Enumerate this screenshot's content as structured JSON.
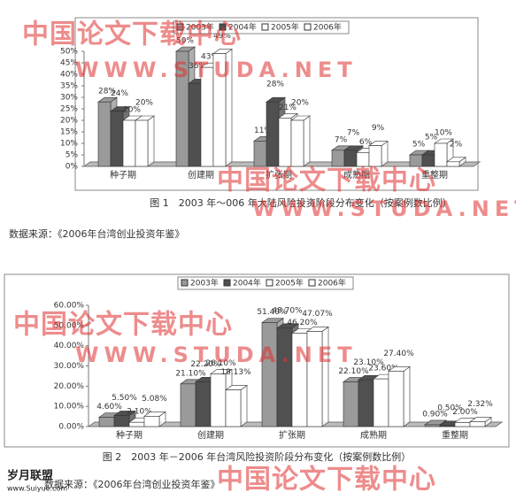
{
  "chart_data": [
    {
      "type": "bar3d",
      "title": "图 1　2003 年～006 年大陆风险投资阶段分布变化（按案例数比例）",
      "categories": [
        "种子期",
        "创建期",
        "扩张期",
        "成熟期",
        "重整期"
      ],
      "series": [
        {
          "name": "2003年",
          "color": "#9a9a9a",
          "values": [
            28,
            50,
            11,
            7,
            5
          ],
          "value_labels": [
            "28%",
            "50%",
            "11%",
            "7%",
            "5%"
          ]
        },
        {
          "name": "2004年",
          "color": "#505050",
          "values": [
            24,
            36,
            28,
            7,
            5
          ],
          "value_labels": [
            "24%",
            "36%",
            "28%",
            "7%",
            "5%"
          ]
        },
        {
          "name": "2005年",
          "color": "#ffffff",
          "values": [
            20,
            43,
            21,
            6,
            10
          ],
          "value_labels": [
            "20%",
            "43%",
            "21%",
            "6%",
            "10%"
          ]
        },
        {
          "name": "2006年",
          "color": "#ffffff",
          "values": [
            20,
            49,
            20,
            9,
            2
          ],
          "value_labels": [
            "20%",
            "49%",
            "20%",
            "9%",
            "2%"
          ]
        }
      ],
      "ylim": [
        0,
        50
      ],
      "yticks": [
        {
          "value": 0,
          "label": "0%"
        },
        {
          "value": 5,
          "label": "5%"
        },
        {
          "value": 10,
          "label": "10%"
        },
        {
          "value": 15,
          "label": "15%"
        },
        {
          "value": 20,
          "label": "20%"
        },
        {
          "value": 25,
          "label": "25%"
        },
        {
          "value": 30,
          "label": "30%"
        },
        {
          "value": 35,
          "label": "35%"
        },
        {
          "value": 40,
          "label": "40%"
        },
        {
          "value": 45,
          "label": "45%"
        },
        {
          "value": 50,
          "label": "50%"
        }
      ],
      "legend": "top"
    },
    {
      "type": "bar3d",
      "title": "图 2　2003 年－2006 年台湾风险投资阶段分布变化（按案例数比例）",
      "categories": [
        "种子期",
        "创建期",
        "扩张期",
        "成熟期",
        "重整期"
      ],
      "series": [
        {
          "name": "2003年",
          "color": "#9a9a9a",
          "values": [
            4.6,
            21.1,
            51.4,
            22.1,
            0.9
          ],
          "value_labels": [
            "4.60%",
            "21.10%",
            "51.40%",
            "22.10%",
            "0.90%"
          ]
        },
        {
          "name": "2004年",
          "color": "#505050",
          "values": [
            5.5,
            22.2,
            48.7,
            23.1,
            0.5
          ],
          "value_labels": [
            "5.50%",
            "22.20%",
            "48.70%",
            "23.10%",
            "0.50%"
          ]
        },
        {
          "name": "2005年",
          "color": "#ffffff",
          "values": [
            2.1,
            26.1,
            46.2,
            23.6,
            2.0
          ],
          "value_labels": [
            "2.10%",
            "26.10%",
            "46.20%",
            "23.60%",
            "2.00%"
          ]
        },
        {
          "name": "2006年",
          "color": "#ffffff",
          "values": [
            5.08,
            18.13,
            47.07,
            27.4,
            2.32
          ],
          "value_labels": [
            "5.08%",
            "18.13%",
            "47.07%",
            "27.40%",
            "2.32%"
          ]
        }
      ],
      "ylim": [
        0,
        60
      ],
      "yticks": [
        {
          "value": 0,
          "label": "0.00%"
        },
        {
          "value": 10,
          "label": "10.00%"
        },
        {
          "value": 20,
          "label": "20.00%"
        },
        {
          "value": 30,
          "label": "30.00%"
        },
        {
          "value": 40,
          "label": "40.00%"
        },
        {
          "value": 50,
          "label": "50.00%"
        },
        {
          "value": 60,
          "label": "60.00%"
        }
      ],
      "legend": "top"
    }
  ],
  "source_notes": [
    "数据来源：《2006年台湾创业投资年鉴》",
    "数据来源：《2006年台湾创业投资年鉴》"
  ],
  "watermarks": [
    "中国论文下载中心",
    "WWW.STUDA.NET",
    "中国论文下载中心",
    "WWW.STUDA.NET",
    "中国论文下载中心",
    "WWW.STUDA.NET",
    "中国论文下载中心"
  ],
  "logo": {
    "name": "岁月联盟",
    "url": "www.Suiyue.com"
  }
}
